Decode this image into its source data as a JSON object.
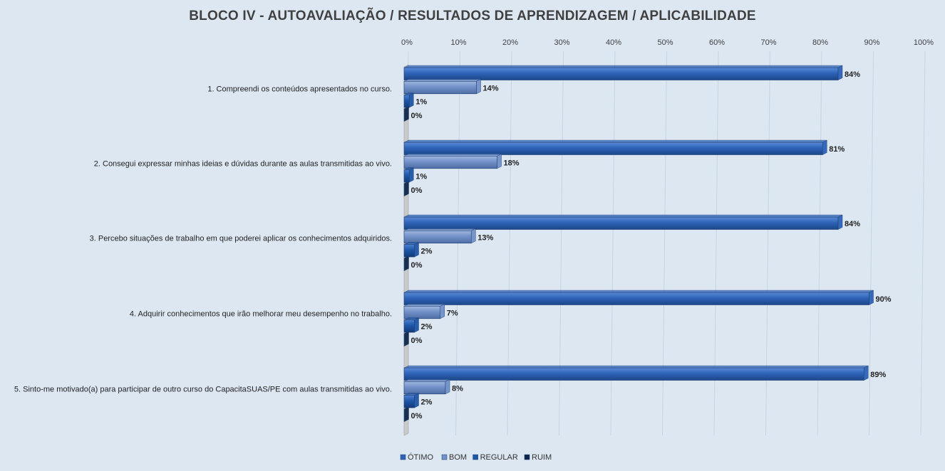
{
  "chart_data": {
    "type": "bar",
    "orientation": "horizontal",
    "title": "BLOCO IV - AUTOAVALIAÇÃO / RESULTADOS  DE APRENDIZAGEM  / APLICABILIDADE",
    "xlabel": "",
    "ylabel": "",
    "xlim": [
      0,
      100
    ],
    "ticks": [
      "0%",
      "10%",
      "20%",
      "30%",
      "40%",
      "50%",
      "60%",
      "70%",
      "80%",
      "90%",
      "100%"
    ],
    "categories": [
      "1. Compreendi os conteúdos apresentados no curso.",
      "2. Consegui expressar minhas ideias e dúvidas durante as aulas transmitidas ao vivo.",
      "3. Percebo situações de trabalho em que poderei aplicar os conhecimentos adquiridos.",
      "4. Adquirir conhecimentos que irão melhorar meu desempenho no trabalho.",
      "5. Sinto-me motivado(a) para participar de outro curso do CapacitaSUAS/PE com aulas transmitidas ao vivo."
    ],
    "series": [
      {
        "name": "ÓTIMO",
        "color": "#2e63b8",
        "values": [
          84,
          81,
          84,
          90,
          89
        ]
      },
      {
        "name": "BOM",
        "color": "#7391c9",
        "values": [
          14,
          18,
          13,
          7,
          8
        ]
      },
      {
        "name": "REGULAR",
        "color": "#1e56a8",
        "values": [
          1,
          1,
          2,
          2,
          2
        ]
      },
      {
        "name": "RUIM",
        "color": "#0f2747",
        "values": [
          0,
          0,
          0,
          0,
          0
        ]
      }
    ],
    "data_labels": [
      [
        "84%",
        "14%",
        "1%",
        "0%"
      ],
      [
        "81%",
        "18%",
        "1%",
        "0%"
      ],
      [
        "84%",
        "13%",
        "2%",
        "0%"
      ],
      [
        "90%",
        "7%",
        "2%",
        "0%"
      ],
      [
        "89%",
        "8%",
        "2%",
        "0%"
      ]
    ],
    "grid": true,
    "legend_position": "bottom"
  }
}
